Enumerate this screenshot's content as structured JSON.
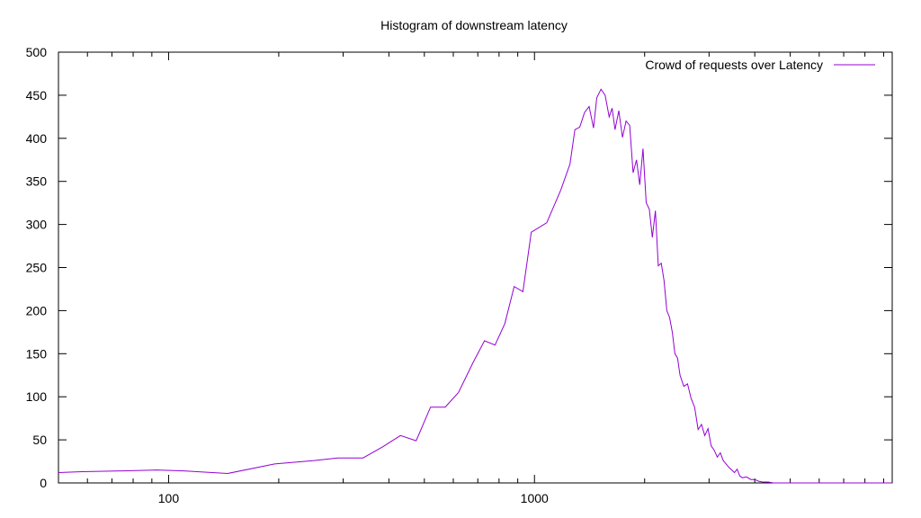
{
  "chart_data": {
    "type": "line",
    "title": "Histogram of downstream latency",
    "xlabel": "",
    "ylabel": "",
    "x_scale": "log",
    "xlim": [
      50,
      9500
    ],
    "ylim": [
      0,
      500
    ],
    "x_ticks": [
      100,
      1000
    ],
    "y_ticks": [
      0,
      50,
      100,
      150,
      200,
      250,
      300,
      350,
      400,
      450,
      500
    ],
    "grid": false,
    "legend_position": "top-right",
    "series": [
      {
        "name": "Crowd of requests over Latency",
        "color": "#9400d3",
        "x": [
          50,
          58,
          75,
          93,
          110,
          145,
          195,
          250,
          290,
          340,
          385,
          430,
          475,
          520,
          570,
          620,
          680,
          730,
          780,
          830,
          880,
          930,
          980,
          1080,
          1180,
          1250,
          1290,
          1330,
          1370,
          1410,
          1450,
          1480,
          1520,
          1560,
          1600,
          1630,
          1660,
          1700,
          1740,
          1780,
          1820,
          1860,
          1900,
          1940,
          1980,
          2020,
          2060,
          2100,
          2140,
          2180,
          2220,
          2260,
          2300,
          2340,
          2380,
          2420,
          2460,
          2500,
          2560,
          2620,
          2680,
          2740,
          2800,
          2860,
          2920,
          2980,
          3040,
          3100,
          3160,
          3220,
          3280,
          3340,
          3400,
          3460,
          3520,
          3580,
          3640,
          3700,
          3800,
          3900,
          4000,
          4100,
          4200,
          4350,
          4500,
          4700,
          4900,
          5200,
          5600,
          6000,
          6500,
          7000,
          7500,
          8000,
          8500,
          9000,
          9500
        ],
        "values": [
          12,
          13,
          14,
          15,
          14,
          11,
          22,
          26,
          29,
          29,
          42,
          55,
          49,
          88,
          88,
          105,
          140,
          165,
          160,
          185,
          228,
          222,
          291,
          302,
          340,
          370,
          410,
          413,
          430,
          437,
          412,
          447,
          457,
          450,
          425,
          435,
          410,
          432,
          401,
          420,
          415,
          360,
          375,
          346,
          388,
          325,
          318,
          285,
          316,
          252,
          255,
          235,
          200,
          192,
          175,
          150,
          145,
          125,
          112,
          115,
          98,
          88,
          62,
          68,
          55,
          63,
          43,
          38,
          30,
          35,
          26,
          22,
          18,
          15,
          12,
          16,
          8,
          6,
          7,
          4,
          4,
          2,
          1,
          1,
          0,
          0,
          0,
          0,
          0,
          0,
          0,
          0,
          0,
          0,
          0,
          0,
          0
        ]
      }
    ]
  }
}
